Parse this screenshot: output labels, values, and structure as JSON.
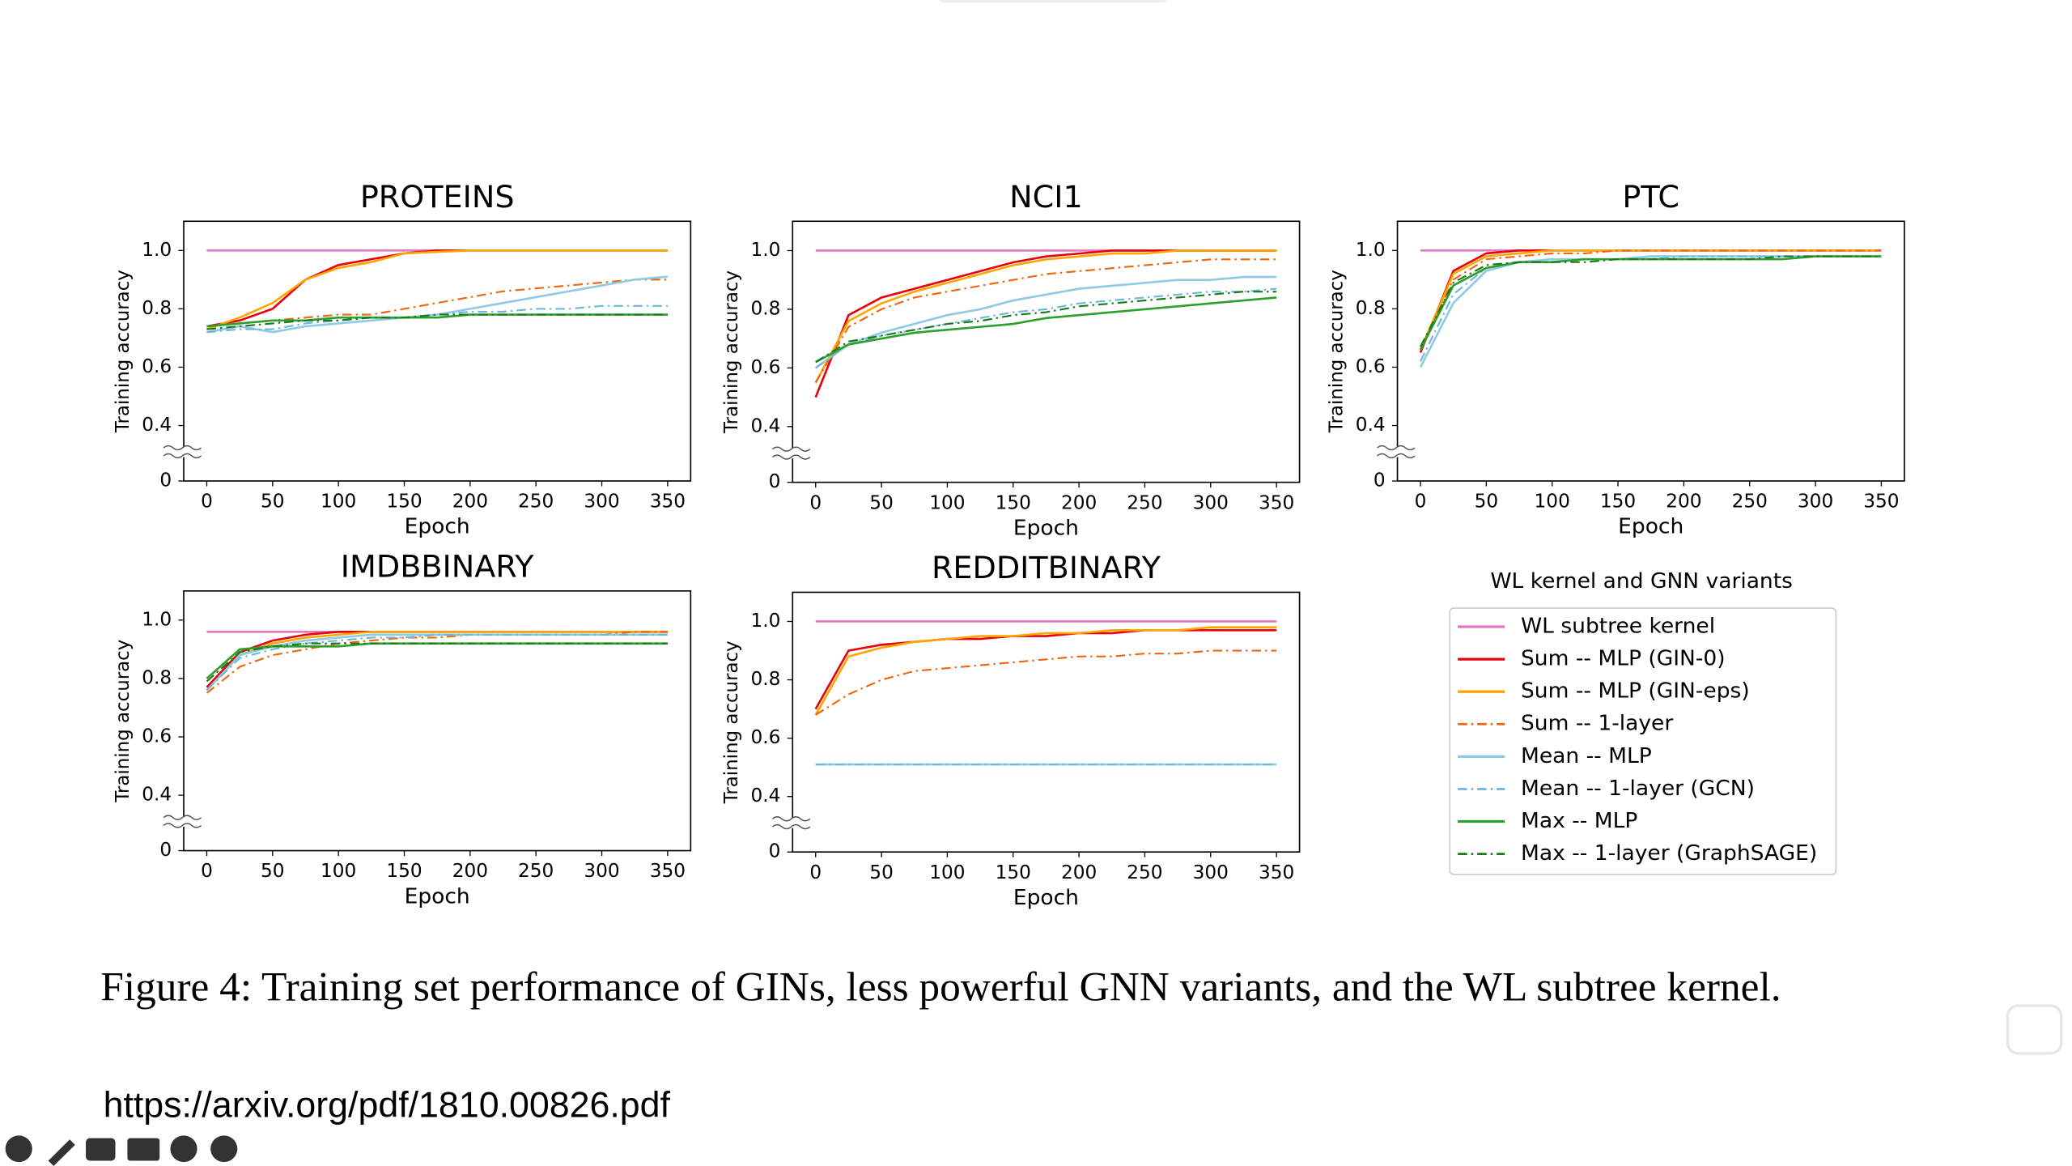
{
  "chart_data": [
    {
      "type": "line",
      "title": "PROTEINS",
      "xlabel": "Epoch",
      "ylabel": "Training accuracy",
      "axis_break": true,
      "x": [
        0,
        25,
        50,
        75,
        100,
        125,
        150,
        175,
        200,
        225,
        250,
        275,
        300,
        325,
        350
      ],
      "xlim": [
        -17.5,
        367.5
      ],
      "xticks": [
        0,
        50,
        100,
        150,
        200,
        250,
        300,
        350
      ],
      "ylim": [
        0.21,
        1.1
      ],
      "yticks": [
        0,
        0.4,
        0.6,
        0.8,
        {
          "value": 1,
          "label": "1.0"
        }
      ],
      "series": [
        {
          "name": "WL subtree kernel",
          "color": "#e377c2",
          "style": "solid",
          "values": [
            1,
            1,
            1,
            1,
            1,
            1,
            1,
            1,
            1,
            1,
            1,
            1,
            1,
            1,
            1
          ]
        },
        {
          "name": "Sum -- MLP (GIN-0)",
          "color": "#e8000b",
          "style": "solid",
          "values": [
            0.74,
            0.76,
            0.8,
            0.9,
            0.95,
            0.97,
            0.99,
            1,
            1,
            1,
            1,
            1,
            1,
            1,
            1
          ]
        },
        {
          "name": "Sum -- MLP (GIN-eps)",
          "color": "#ffa500",
          "style": "solid",
          "values": [
            0.73,
            0.77,
            0.82,
            0.9,
            0.94,
            0.96,
            0.99,
            0.995,
            1,
            1,
            1,
            1,
            1,
            1,
            1
          ]
        },
        {
          "name": "Sum -- 1-layer",
          "color": "#f0650e",
          "style": "dashdot",
          "values": [
            0.74,
            0.75,
            0.76,
            0.77,
            0.78,
            0.78,
            0.8,
            0.82,
            0.84,
            0.86,
            0.87,
            0.88,
            0.89,
            0.9,
            0.9
          ]
        },
        {
          "name": "Mean -- MLP",
          "color": "#8ecae6",
          "style": "solid",
          "values": [
            0.72,
            0.74,
            0.72,
            0.74,
            0.75,
            0.76,
            0.77,
            0.78,
            0.8,
            0.82,
            0.84,
            0.86,
            0.88,
            0.9,
            0.91
          ]
        },
        {
          "name": "Mean -- 1-layer (GCN)",
          "color": "#6fb6dc",
          "style": "dashdot",
          "values": [
            0.72,
            0.73,
            0.73,
            0.75,
            0.76,
            0.77,
            0.77,
            0.78,
            0.79,
            0.79,
            0.8,
            0.8,
            0.81,
            0.81,
            0.81
          ]
        },
        {
          "name": "Max -- MLP",
          "color": "#2ca02c",
          "style": "solid",
          "values": [
            0.74,
            0.75,
            0.76,
            0.76,
            0.77,
            0.77,
            0.77,
            0.77,
            0.78,
            0.78,
            0.78,
            0.78,
            0.78,
            0.78,
            0.78
          ]
        },
        {
          "name": "Max -- 1-layer (GraphSAGE)",
          "color": "#1a7a1a",
          "style": "dashdot",
          "values": [
            0.73,
            0.74,
            0.75,
            0.76,
            0.76,
            0.77,
            0.77,
            0.78,
            0.78,
            0.78,
            0.78,
            0.78,
            0.78,
            0.78,
            0.78
          ]
        }
      ]
    },
    {
      "type": "line",
      "title": "NCI1",
      "xlabel": "Epoch",
      "ylabel": "Training accuracy",
      "axis_break": true,
      "x": [
        0,
        25,
        50,
        75,
        100,
        125,
        150,
        175,
        200,
        225,
        250,
        275,
        300,
        325,
        350
      ],
      "xlim": [
        -17.5,
        367.5
      ],
      "xticks": [
        0,
        50,
        100,
        150,
        200,
        250,
        300,
        350
      ],
      "ylim": [
        0.21,
        1.1
      ],
      "yticks": [
        0,
        0.4,
        0.6,
        0.8,
        {
          "value": 1,
          "label": "1.0"
        }
      ],
      "series": [
        {
          "name": "WL subtree kernel",
          "color": "#e377c2",
          "style": "solid",
          "values": [
            1,
            1,
            1,
            1,
            1,
            1,
            1,
            1,
            1,
            1,
            1,
            1,
            1,
            1,
            1
          ]
        },
        {
          "name": "Sum -- MLP (GIN-0)",
          "color": "#e8000b",
          "style": "solid",
          "values": [
            0.5,
            0.78,
            0.84,
            0.87,
            0.9,
            0.93,
            0.96,
            0.98,
            0.99,
            1,
            1,
            1,
            1,
            1,
            1
          ]
        },
        {
          "name": "Sum -- MLP (GIN-eps)",
          "color": "#ffa500",
          "style": "solid",
          "values": [
            0.55,
            0.76,
            0.82,
            0.86,
            0.89,
            0.92,
            0.95,
            0.97,
            0.98,
            0.99,
            0.99,
            1,
            1,
            1,
            1
          ]
        },
        {
          "name": "Sum -- 1-layer",
          "color": "#f0650e",
          "style": "dashdot",
          "values": [
            0.55,
            0.74,
            0.8,
            0.84,
            0.86,
            0.88,
            0.9,
            0.92,
            0.93,
            0.94,
            0.95,
            0.96,
            0.97,
            0.97,
            0.97
          ]
        },
        {
          "name": "Mean -- MLP",
          "color": "#8ecae6",
          "style": "solid",
          "values": [
            0.6,
            0.68,
            0.72,
            0.75,
            0.78,
            0.8,
            0.83,
            0.85,
            0.87,
            0.88,
            0.89,
            0.9,
            0.9,
            0.91,
            0.91
          ]
        },
        {
          "name": "Mean -- 1-layer (GCN)",
          "color": "#6fb6dc",
          "style": "dashdot",
          "values": [
            0.6,
            0.68,
            0.71,
            0.73,
            0.75,
            0.77,
            0.79,
            0.8,
            0.82,
            0.83,
            0.84,
            0.85,
            0.86,
            0.86,
            0.87
          ]
        },
        {
          "name": "Max -- MLP",
          "color": "#2ca02c",
          "style": "solid",
          "values": [
            0.62,
            0.68,
            0.7,
            0.72,
            0.73,
            0.74,
            0.75,
            0.77,
            0.78,
            0.79,
            0.8,
            0.81,
            0.82,
            0.83,
            0.84
          ]
        },
        {
          "name": "Max -- 1-layer (GraphSAGE)",
          "color": "#1a7a1a",
          "style": "dashdot",
          "values": [
            0.62,
            0.69,
            0.71,
            0.73,
            0.75,
            0.76,
            0.78,
            0.79,
            0.81,
            0.82,
            0.83,
            0.84,
            0.85,
            0.86,
            0.86
          ]
        }
      ]
    },
    {
      "type": "line",
      "title": "PTC",
      "xlabel": "Epoch",
      "ylabel": "Training accuracy",
      "axis_break": true,
      "x": [
        0,
        25,
        50,
        75,
        100,
        125,
        150,
        175,
        200,
        225,
        250,
        275,
        300,
        325,
        350
      ],
      "xlim": [
        -17.5,
        367.5
      ],
      "xticks": [
        0,
        50,
        100,
        150,
        200,
        250,
        300,
        350
      ],
      "ylim": [
        0.21,
        1.1
      ],
      "yticks": [
        0,
        0.4,
        0.6,
        0.8,
        {
          "value": 1,
          "label": "1.0"
        }
      ],
      "series": [
        {
          "name": "WL subtree kernel",
          "color": "#e377c2",
          "style": "solid",
          "values": [
            1,
            1,
            1,
            1,
            1,
            1,
            1,
            1,
            1,
            1,
            1,
            1,
            1,
            1,
            1
          ]
        },
        {
          "name": "Sum -- MLP (GIN-0)",
          "color": "#e8000b",
          "style": "solid",
          "values": [
            0.65,
            0.93,
            0.99,
            1,
            1,
            1,
            1,
            1,
            1,
            1,
            1,
            1,
            1,
            1,
            1
          ]
        },
        {
          "name": "Sum -- MLP (GIN-eps)",
          "color": "#ffa500",
          "style": "solid",
          "values": [
            0.66,
            0.92,
            0.98,
            0.99,
            1,
            1,
            1,
            1,
            1,
            1,
            1,
            1,
            1,
            1,
            1
          ]
        },
        {
          "name": "Sum -- 1-layer",
          "color": "#f0650e",
          "style": "dashdot",
          "values": [
            0.66,
            0.9,
            0.97,
            0.98,
            0.99,
            0.99,
            1,
            1,
            1,
            1,
            1,
            1,
            1,
            1,
            1
          ]
        },
        {
          "name": "Mean -- MLP",
          "color": "#8ecae6",
          "style": "solid",
          "values": [
            0.6,
            0.82,
            0.93,
            0.96,
            0.97,
            0.97,
            0.97,
            0.98,
            0.98,
            0.98,
            0.98,
            0.98,
            0.98,
            0.98,
            0.98
          ]
        },
        {
          "name": "Mean -- 1-layer (GCN)",
          "color": "#6fb6dc",
          "style": "dashdot",
          "values": [
            0.62,
            0.85,
            0.94,
            0.96,
            0.96,
            0.97,
            0.97,
            0.97,
            0.98,
            0.98,
            0.98,
            0.98,
            0.98,
            0.98,
            0.98
          ]
        },
        {
          "name": "Max -- MLP",
          "color": "#2ca02c",
          "style": "solid",
          "values": [
            0.66,
            0.88,
            0.94,
            0.96,
            0.96,
            0.97,
            0.97,
            0.97,
            0.97,
            0.97,
            0.97,
            0.97,
            0.98,
            0.98,
            0.98
          ]
        },
        {
          "name": "Max -- 1-layer (GraphSAGE)",
          "color": "#1a7a1a",
          "style": "dashdot",
          "values": [
            0.67,
            0.89,
            0.95,
            0.96,
            0.96,
            0.96,
            0.97,
            0.97,
            0.97,
            0.97,
            0.97,
            0.98,
            0.98,
            0.98,
            0.98
          ]
        }
      ]
    },
    {
      "type": "line",
      "title": "IMDBBINARY",
      "xlabel": "Epoch",
      "ylabel": "Training accuracy",
      "axis_break": true,
      "x": [
        0,
        25,
        50,
        75,
        100,
        125,
        150,
        175,
        200,
        225,
        250,
        275,
        300,
        325,
        350
      ],
      "xlim": [
        -17.5,
        367.5
      ],
      "xticks": [
        0,
        50,
        100,
        150,
        200,
        250,
        300,
        350
      ],
      "ylim": [
        0.21,
        1.1
      ],
      "yticks": [
        0,
        0.4,
        0.6,
        0.8,
        {
          "value": 1,
          "label": "1.0"
        }
      ],
      "series": [
        {
          "name": "WL subtree kernel",
          "color": "#e377c2",
          "style": "solid",
          "values": [
            0.96,
            0.96,
            0.96,
            0.96,
            0.96,
            0.96,
            0.96,
            0.96,
            0.96,
            0.96,
            0.96,
            0.96,
            0.96,
            0.96,
            0.96
          ]
        },
        {
          "name": "Sum -- MLP (GIN-0)",
          "color": "#e8000b",
          "style": "solid",
          "values": [
            0.77,
            0.89,
            0.93,
            0.95,
            0.96,
            0.96,
            0.96,
            0.96,
            0.96,
            0.96,
            0.96,
            0.96,
            0.96,
            0.96,
            0.96
          ]
        },
        {
          "name": "Sum -- MLP (GIN-eps)",
          "color": "#ffa500",
          "style": "solid",
          "values": [
            0.76,
            0.88,
            0.92,
            0.94,
            0.95,
            0.96,
            0.96,
            0.96,
            0.96,
            0.96,
            0.96,
            0.96,
            0.96,
            0.96,
            0.96
          ]
        },
        {
          "name": "Sum -- 1-layer",
          "color": "#f0650e",
          "style": "dashdot",
          "values": [
            0.75,
            0.84,
            0.88,
            0.9,
            0.92,
            0.93,
            0.94,
            0.94,
            0.95,
            0.95,
            0.95,
            0.95,
            0.95,
            0.96,
            0.96
          ]
        },
        {
          "name": "Mean -- MLP",
          "color": "#8ecae6",
          "style": "solid",
          "values": [
            0.76,
            0.88,
            0.91,
            0.93,
            0.94,
            0.95,
            0.95,
            0.95,
            0.95,
            0.95,
            0.95,
            0.95,
            0.95,
            0.95,
            0.95
          ]
        },
        {
          "name": "Mean -- 1-layer (GCN)",
          "color": "#6fb6dc",
          "style": "dashdot",
          "values": [
            0.76,
            0.87,
            0.9,
            0.92,
            0.93,
            0.94,
            0.94,
            0.95,
            0.95,
            0.95,
            0.95,
            0.95,
            0.95,
            0.95,
            0.95
          ]
        },
        {
          "name": "Max -- MLP",
          "color": "#2ca02c",
          "style": "solid",
          "values": [
            0.8,
            0.9,
            0.91,
            0.91,
            0.91,
            0.92,
            0.92,
            0.92,
            0.92,
            0.92,
            0.92,
            0.92,
            0.92,
            0.92,
            0.92
          ]
        },
        {
          "name": "Max -- 1-layer (GraphSAGE)",
          "color": "#1a7a1a",
          "style": "dashdot",
          "values": [
            0.79,
            0.89,
            0.91,
            0.92,
            0.92,
            0.92,
            0.92,
            0.92,
            0.92,
            0.92,
            0.92,
            0.92,
            0.92,
            0.92,
            0.92
          ]
        }
      ]
    },
    {
      "type": "line",
      "title": "REDDITBINARY",
      "xlabel": "Epoch",
      "ylabel": "Training accuracy",
      "axis_break": true,
      "x": [
        0,
        25,
        50,
        75,
        100,
        125,
        150,
        175,
        200,
        225,
        250,
        275,
        300,
        325,
        350
      ],
      "xlim": [
        -17.5,
        367.5
      ],
      "xticks": [
        0,
        50,
        100,
        150,
        200,
        250,
        300,
        350
      ],
      "ylim": [
        0.21,
        1.1
      ],
      "yticks": [
        0,
        0.4,
        0.6,
        0.8,
        {
          "value": 1,
          "label": "1.0"
        }
      ],
      "series": [
        {
          "name": "WL subtree kernel",
          "color": "#e377c2",
          "style": "solid",
          "values": [
            1,
            1,
            1,
            1,
            1,
            1,
            1,
            1,
            1,
            1,
            1,
            1,
            1,
            1,
            1
          ]
        },
        {
          "name": "Sum -- MLP (GIN-0)",
          "color": "#e8000b",
          "style": "solid",
          "values": [
            0.7,
            0.9,
            0.92,
            0.93,
            0.94,
            0.94,
            0.95,
            0.95,
            0.96,
            0.96,
            0.97,
            0.97,
            0.97,
            0.97,
            0.97
          ]
        },
        {
          "name": "Sum -- MLP (GIN-eps)",
          "color": "#ffa500",
          "style": "solid",
          "values": [
            0.68,
            0.88,
            0.91,
            0.93,
            0.94,
            0.95,
            0.95,
            0.96,
            0.96,
            0.97,
            0.97,
            0.97,
            0.98,
            0.98,
            0.98
          ]
        },
        {
          "name": "Sum -- 1-layer",
          "color": "#f0650e",
          "style": "dashdot",
          "values": [
            0.68,
            0.75,
            0.8,
            0.83,
            0.84,
            0.85,
            0.86,
            0.87,
            0.88,
            0.88,
            0.89,
            0.89,
            0.9,
            0.9,
            0.9
          ]
        },
        {
          "name": "Mean -- MLP",
          "color": "#8ecae6",
          "style": "solid",
          "values": [
            0.51,
            0.51,
            0.51,
            0.51,
            0.51,
            0.51,
            0.51,
            0.51,
            0.51,
            0.51,
            0.51,
            0.51,
            0.51,
            0.51,
            0.51
          ]
        },
        {
          "name": "Mean -- 1-layer (GCN)",
          "color": "#6fb6dc",
          "style": "dashdot",
          "values": [
            0.51,
            0.51,
            0.51,
            0.51,
            0.51,
            0.51,
            0.51,
            0.51,
            0.51,
            0.51,
            0.51,
            0.51,
            0.51,
            0.51,
            0.51
          ]
        }
      ]
    }
  ],
  "legend": {
    "title": "WL kernel and GNN variants"
  },
  "caption": "Figure 4: Training set performance of GINs, less powerful GNN variants, and the WL subtree kernel.",
  "url": "https://arxiv.org/pdf/1810.00826.pdf"
}
